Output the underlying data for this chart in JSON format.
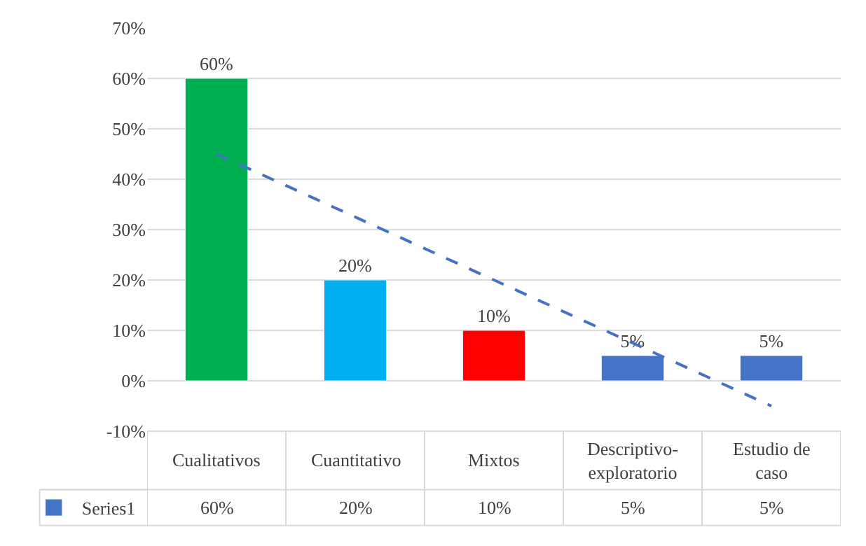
{
  "chart_data": {
    "type": "bar",
    "categories": [
      "Cualitativos",
      "Cuantitativo",
      "Mixtos",
      "Descriptivo-exploratorio",
      "Estudio de caso"
    ],
    "series": [
      {
        "name": "Series1",
        "color": "#4472c4",
        "colors": [
          "#00b050",
          "#00b0f0",
          "#ff0000",
          "#4472c4",
          "#4472c4"
        ],
        "values": [
          60,
          20,
          10,
          5,
          5
        ],
        "value_labels": [
          "60%",
          "20%",
          "10%",
          "5%",
          "5%"
        ]
      },
      {
        "type": "line",
        "color": "#4472c4",
        "line_style": "dashed",
        "values": [
          45,
          32.5,
          20,
          7.5,
          -5
        ]
      }
    ],
    "ylim": [
      -10,
      70
    ],
    "yticks": [
      {
        "value": -10,
        "label": "-10%"
      },
      {
        "value": 0,
        "label": "0%"
      },
      {
        "value": 10,
        "label": "10%"
      },
      {
        "value": 20,
        "label": "20%"
      },
      {
        "value": 30,
        "label": "30%"
      },
      {
        "value": 40,
        "label": "40%"
      },
      {
        "value": 50,
        "label": "50%"
      },
      {
        "value": 60,
        "label": "60%"
      },
      {
        "value": 70,
        "label": "70%"
      }
    ],
    "grid": "y",
    "legend": "bottom left"
  }
}
